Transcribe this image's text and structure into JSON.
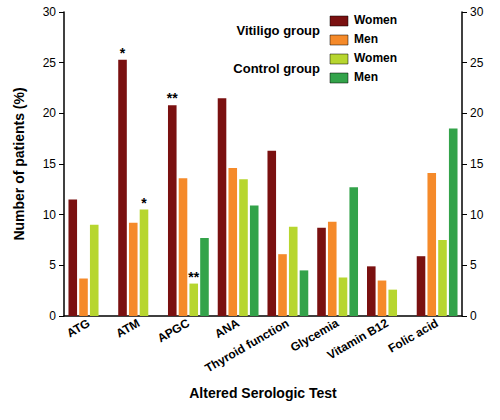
{
  "chart_data": {
    "type": "bar",
    "x_label": "Altered Serologic Test",
    "y_label": "Number of patients (%)",
    "categories": [
      "ATG",
      "ATM",
      "APGC",
      "ANA",
      "Thyroid function",
      "Glycemia",
      "Vitamin B12",
      "Folic acid"
    ],
    "series": [
      {
        "name": "Women",
        "group": "Vitiligo group",
        "color": "#7a1010",
        "values": [
          11.5,
          25.3,
          20.8,
          21.5,
          16.3,
          8.7,
          4.9,
          5.9
        ]
      },
      {
        "name": "Men",
        "group": "Vitiligo group",
        "color": "#f58a2a",
        "values": [
          3.7,
          9.2,
          13.6,
          14.6,
          6.1,
          9.3,
          3.5,
          14.1
        ]
      },
      {
        "name": "Women",
        "group": "Control group",
        "color": "#b7d62f",
        "values": [
          9.0,
          10.5,
          3.2,
          13.5,
          8.8,
          3.8,
          2.6,
          7.5
        ]
      },
      {
        "name": "Men",
        "group": "Control group",
        "color": "#33a34a",
        "values": [
          null,
          null,
          7.7,
          10.9,
          4.5,
          12.7,
          null,
          18.5
        ]
      }
    ],
    "annotations": [
      {
        "text": "*",
        "category": "ATM",
        "series": 0
      },
      {
        "text": "*",
        "category": "ATM",
        "series": 2
      },
      {
        "text": "**",
        "category": "APGC",
        "series": 0
      },
      {
        "text": "**",
        "category": "APGC",
        "series": 2
      }
    ],
    "ylim": [
      0,
      30
    ],
    "yticks": [
      0,
      5,
      10,
      15,
      20,
      25,
      30
    ],
    "y2lim": [
      0,
      30
    ],
    "y2ticks": [
      0,
      5,
      10,
      15,
      20,
      25,
      30
    ],
    "grid": false,
    "legend": "top right"
  }
}
